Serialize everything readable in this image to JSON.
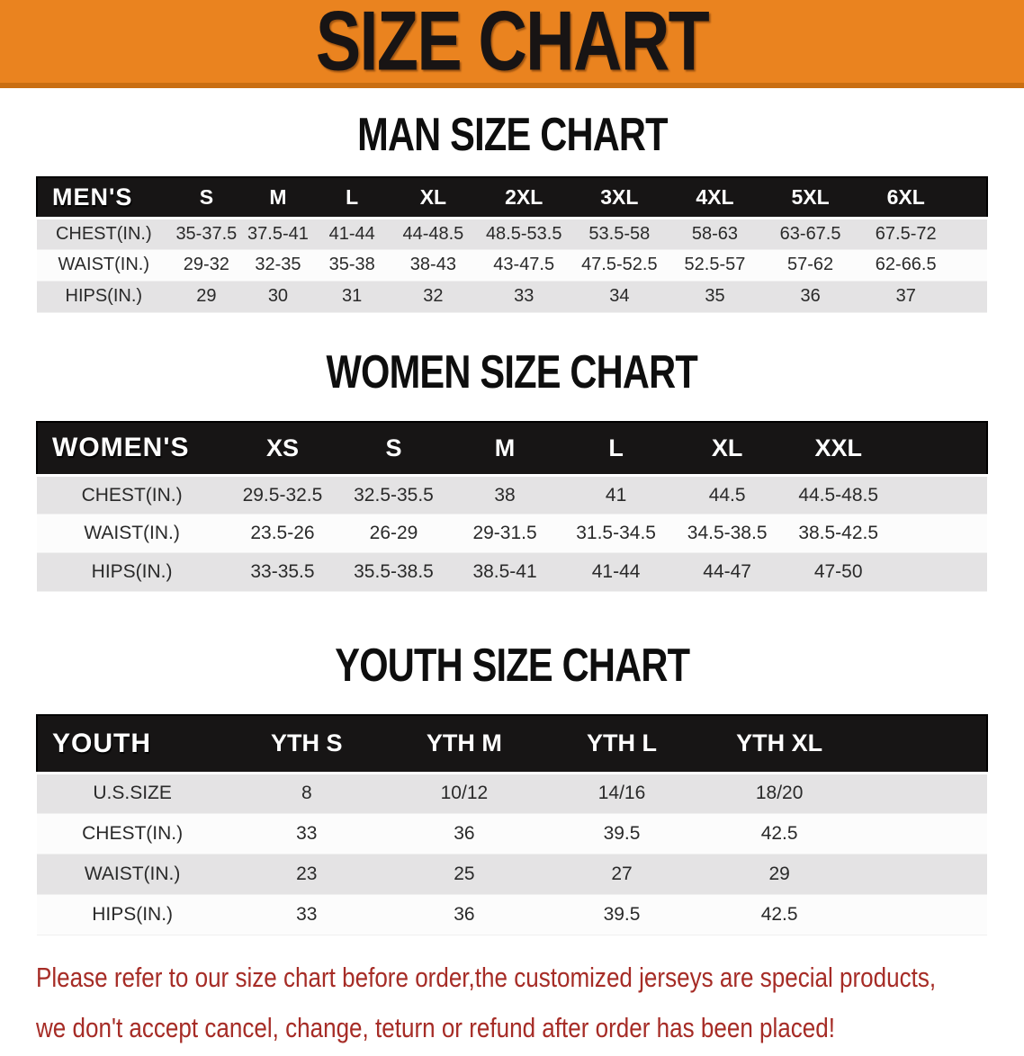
{
  "banner": {
    "title": "SIZE CHART",
    "bg_color": "#ea831f",
    "text_color": "#181414"
  },
  "sections": [
    {
      "heading": "MAN SIZE CHART",
      "group_label": "MEN'S",
      "columns": [
        "S",
        "M",
        "L",
        "XL",
        "2XL",
        "3XL",
        "4XL",
        "5XL",
        "6XL"
      ],
      "rows": [
        {
          "label": "CHEST(IN.)",
          "values": [
            "35-37.5",
            "37.5-41",
            "41-44",
            "44-48.5",
            "48.5-53.5",
            "53.5-58",
            "58-63",
            "63-67.5",
            "67.5-72"
          ]
        },
        {
          "label": "WAIST(IN.)",
          "values": [
            "29-32",
            "32-35",
            "35-38",
            "38-43",
            "43-47.5",
            "47.5-52.5",
            "52.5-57",
            "57-62",
            "62-66.5"
          ]
        },
        {
          "label": "HIPS(IN.)",
          "values": [
            "29",
            "30",
            "31",
            "32",
            "33",
            "34",
            "35",
            "36",
            "37"
          ]
        }
      ]
    },
    {
      "heading": "WOMEN SIZE CHART",
      "group_label": "WOMEN'S",
      "columns": [
        "XS",
        "S",
        "M",
        "L",
        "XL",
        "XXL"
      ],
      "rows": [
        {
          "label": "CHEST(IN.)",
          "values": [
            "29.5-32.5",
            "32.5-35.5",
            "38",
            "41",
            "44.5",
            "44.5-48.5"
          ]
        },
        {
          "label": "WAIST(IN.)",
          "values": [
            "23.5-26",
            "26-29",
            "29-31.5",
            "31.5-34.5",
            "34.5-38.5",
            "38.5-42.5"
          ]
        },
        {
          "label": "HIPS(IN.)",
          "values": [
            "33-35.5",
            "35.5-38.5",
            "38.5-41",
            "41-44",
            "44-47",
            "47-50"
          ]
        }
      ]
    },
    {
      "heading": "YOUTH SIZE CHART",
      "group_label": "YOUTH",
      "columns": [
        "YTH S",
        "YTH M",
        "YTH L",
        "YTH XL"
      ],
      "rows": [
        {
          "label": "U.S.SIZE",
          "values": [
            "8",
            "10/12",
            "14/16",
            "18/20"
          ]
        },
        {
          "label": "CHEST(IN.)",
          "values": [
            "33",
            "36",
            "39.5",
            "42.5"
          ]
        },
        {
          "label": "WAIST(IN.)",
          "values": [
            "23",
            "25",
            "27",
            "29"
          ]
        },
        {
          "label": "HIPS(IN.)",
          "values": [
            "33",
            "36",
            "39.5",
            "42.5"
          ]
        }
      ]
    }
  ],
  "disclaimer": {
    "line1": "Please refer to our size chart before order,the customized jerseys are special products,",
    "line2": "we don't accept cancel, change, teturn or refund after order has been placed!",
    "color": "#a62c26"
  }
}
